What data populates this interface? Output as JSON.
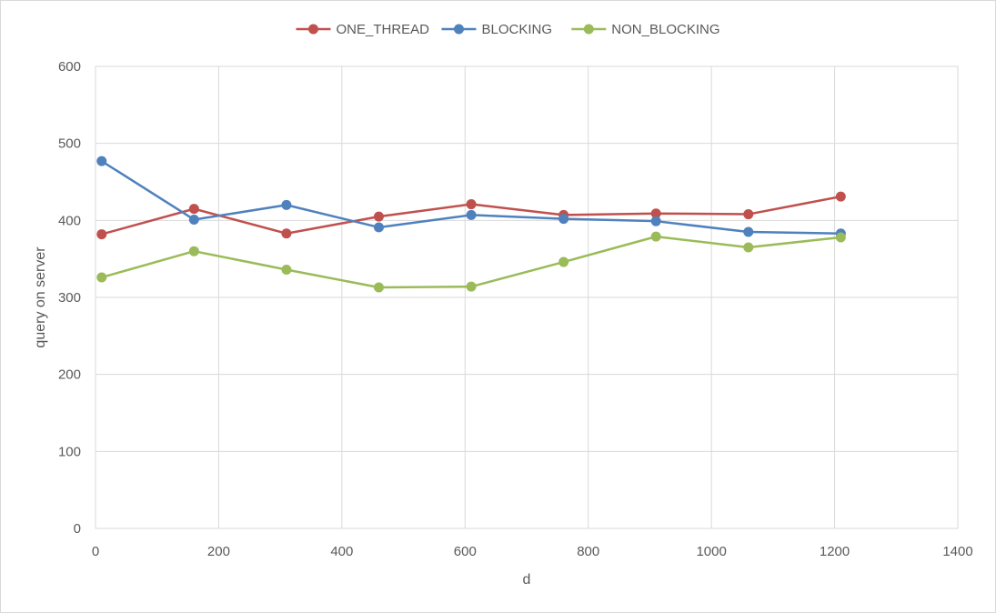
{
  "chart_data": {
    "type": "line",
    "title": "",
    "xlabel": "d",
    "ylabel": "query on server",
    "xlim": [
      0,
      1400
    ],
    "ylim": [
      0,
      600
    ],
    "xticks": [
      0,
      200,
      400,
      600,
      800,
      1000,
      1200,
      1400
    ],
    "yticks": [
      0,
      100,
      200,
      300,
      400,
      500,
      600
    ],
    "grid": true,
    "legend_position": "top",
    "x": [
      10,
      160,
      310,
      460,
      610,
      760,
      910,
      1060,
      1210
    ],
    "series": [
      {
        "name": "ONE_THREAD",
        "color": "#c0504d",
        "values": [
          382,
          415,
          383,
          405,
          421,
          407,
          409,
          408,
          431
        ]
      },
      {
        "name": "BLOCKING",
        "color": "#4f81bd",
        "values": [
          477,
          401,
          420,
          391,
          407,
          402,
          399,
          385,
          383
        ]
      },
      {
        "name": "NON_BLOCKING",
        "color": "#9bbb59",
        "values": [
          326,
          360,
          336,
          313,
          314,
          346,
          379,
          365,
          378
        ]
      }
    ]
  }
}
